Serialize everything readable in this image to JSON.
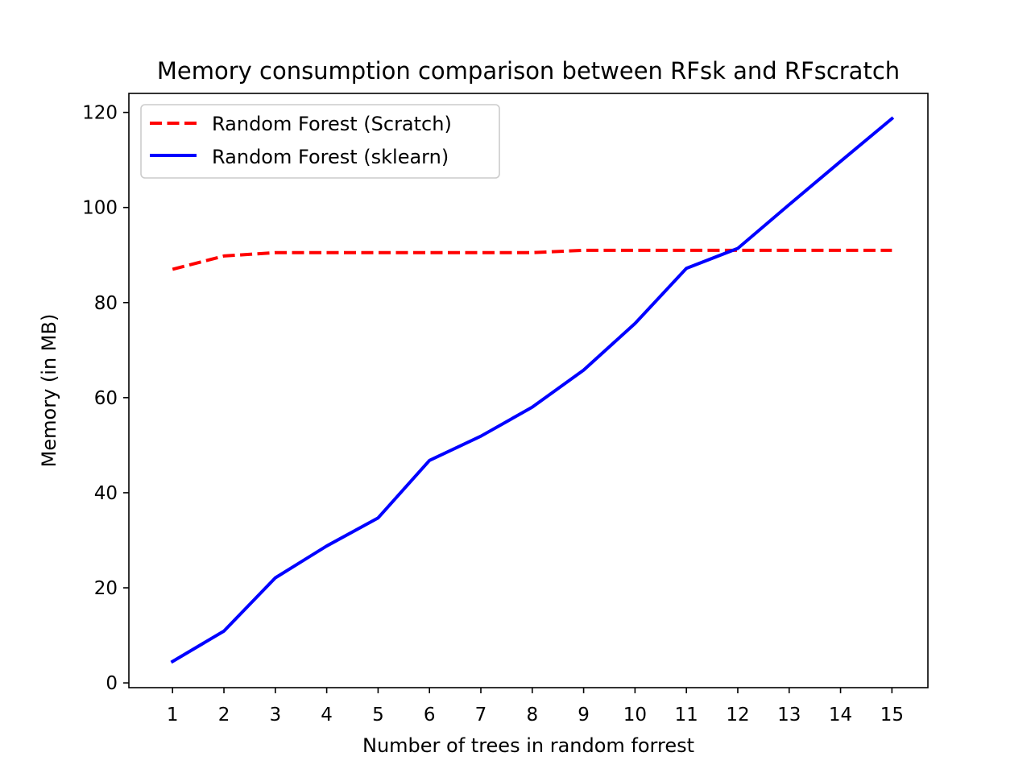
{
  "chart_data": {
    "type": "line",
    "title": "Memory consumption comparison between RFsk and RFscratch",
    "xlabel": "Number of trees in random forrest",
    "ylabel": "Memory (in MB)",
    "x": [
      1,
      2,
      3,
      4,
      5,
      6,
      7,
      8,
      9,
      10,
      11,
      12,
      13,
      14,
      15
    ],
    "xticks": [
      "1",
      "2",
      "3",
      "4",
      "5",
      "6",
      "7",
      "8",
      "9",
      "10",
      "11",
      "12",
      "13",
      "14",
      "15"
    ],
    "yticks": [
      0,
      20,
      40,
      60,
      80,
      100,
      120
    ],
    "ylim": [
      -1,
      124
    ],
    "xlim": [
      0.15,
      15.7
    ],
    "grid": false,
    "legend_position": "top-left",
    "series": [
      {
        "name": "Random Forest (Scratch)",
        "color": "#ff0000",
        "style": "dashed",
        "values": [
          87.0,
          89.8,
          90.5,
          90.5,
          90.5,
          90.5,
          90.5,
          90.5,
          91.0,
          91.0,
          91.0,
          91.0,
          91.0,
          91.0,
          91.0
        ]
      },
      {
        "name": "Random Forest (sklearn)",
        "color": "#0000ff",
        "style": "solid",
        "values": [
          4.5,
          10.9,
          22.1,
          28.8,
          34.7,
          46.8,
          51.9,
          58.0,
          65.8,
          75.6,
          87.2,
          91.4,
          100.6,
          109.7,
          118.7
        ]
      }
    ]
  }
}
